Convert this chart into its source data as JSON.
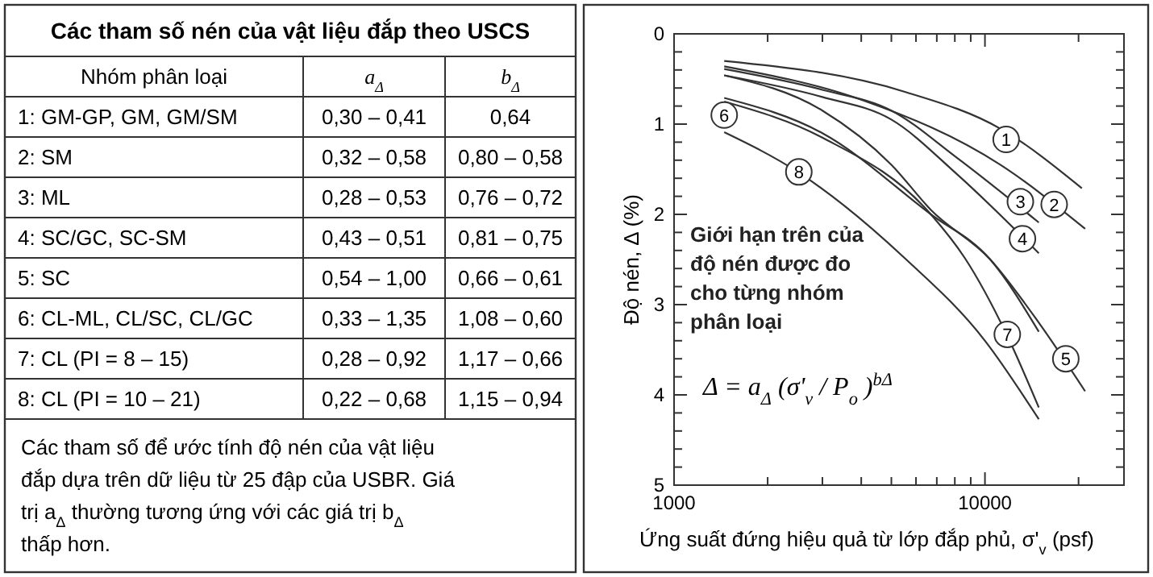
{
  "chart_data": [
    {
      "type": "other",
      "title": "Các tham số nén của vật liệu đắp theo USCS",
      "annotations": [
        "Nhóm phân loại",
        "a$_{Δ}$",
        "b$_{Δ}$",
        "1: GM-GP, GM, GM/SM",
        "0,30 – 0,41",
        "0,64",
        "2: SM",
        "0,32 – 0,58",
        "0,80 – 0,58",
        "3: ML",
        "0,28 – 0,53",
        "0,76 – 0,72",
        "4: SC/GC, SC-SM",
        "0,43 – 0,51",
        "0,81 – 0,75",
        "5: SC",
        "0,54 – 1,00",
        "0,66 – 0,61",
        "6: CL-ML, CL/SC, CL/GC",
        "0,33 – 1,35",
        "1,08 – 0,60",
        "7: CL (PI = 8 – 15)",
        "0,28 – 0,92",
        "1,17 – 0,66",
        "8: CL (PI = 10 – 21)",
        "0,22 – 0,68",
        "1,15 – 0,94",
        "Các tham số để ước tính độ nén của vật liệu đắp dựa trên dữ liệu từ 25 đập của USBR. Giá trị a$_{Δ}$ thường tương ứng với các giá trị b$_{Δ}$ thấp hơn."
      ]
    },
    {
      "type": "line",
      "log": "x",
      "xlabel": "Ứng suất đứng hiệu quả từ lớp đắp phủ, σ'$_{v}$ (psf)",
      "ylabel": "Độ nén, Δ (%)",
      "xlim": [
        1000,
        28000
      ],
      "ylim": [
        5,
        0
      ],
      "xticks": [
        1000,
        {
          "value": 2000,
          "label": null
        },
        {
          "value": 3000,
          "label": null
        },
        {
          "value": 4000,
          "label": null
        },
        {
          "value": 5000,
          "label": null
        },
        {
          "value": 6000,
          "label": null
        },
        {
          "value": 7000,
          "label": null
        },
        {
          "value": 8000,
          "label": null
        },
        {
          "value": 9000,
          "label": null
        },
        10000,
        {
          "value": 20000,
          "label": null
        }
      ],
      "yticks": [
        0,
        {
          "value": 0.2,
          "label": null
        },
        {
          "value": 0.4,
          "label": null
        },
        {
          "value": 0.6,
          "label": null
        },
        {
          "value": 0.8,
          "label": null
        },
        1,
        {
          "value": 1.2,
          "label": null
        },
        {
          "value": 1.4,
          "label": null
        },
        {
          "value": 1.6,
          "label": null
        },
        {
          "value": 1.8,
          "label": null
        },
        2,
        {
          "value": 2.2,
          "label": null
        },
        {
          "value": 2.4,
          "label": null
        },
        {
          "value": 2.6,
          "label": null
        },
        {
          "value": 2.8,
          "label": null
        },
        3,
        {
          "value": 3.2,
          "label": null
        },
        {
          "value": 3.4,
          "label": null
        },
        {
          "value": 3.6,
          "label": null
        },
        {
          "value": 3.8,
          "label": null
        },
        4,
        {
          "value": 4.2,
          "label": null
        },
        {
          "value": 4.4,
          "label": null
        },
        {
          "value": 4.6,
          "label": null
        },
        {
          "value": 4.8,
          "label": null
        },
        5
      ],
      "grid": false,
      "series": [
        {
          "color": "#333333",
          "x": [
            1450,
            5500,
            11200,
            20500
          ],
          "values": [
            0.3,
            0.64,
            1.05,
            1.71
          ]
        },
        {
          "color": "#333333",
          "x": [
            1450,
            4000,
            11200,
            21000
          ],
          "values": [
            0.36,
            0.73,
            1.45,
            2.16
          ]
        },
        {
          "color": "#333333",
          "x": [
            1450,
            3000,
            5000,
            8100,
            14900
          ],
          "values": [
            0.39,
            0.62,
            0.85,
            1.37,
            2.09
          ]
        },
        {
          "color": "#333333",
          "x": [
            1450,
            3000,
            5000,
            8100,
            14900
          ],
          "values": [
            0.46,
            0.7,
            0.95,
            1.55,
            2.43
          ]
        },
        {
          "color": "#333333",
          "x": [
            1450,
            3000,
            5000,
            6700,
            10400,
            14900,
            21000
          ],
          "values": [
            0.46,
            0.85,
            1.45,
            1.95,
            2.5,
            3.2,
            3.96
          ]
        },
        {
          "color": "#333333",
          "x": [
            1450,
            3000,
            6700,
            10400,
            14900
          ],
          "values": [
            0.71,
            1.1,
            2.0,
            2.5,
            3.3
          ]
        },
        {
          "color": "#333333",
          "x": [
            1450,
            3000,
            6700,
            8600,
            11700,
            14900
          ],
          "values": [
            0.75,
            1.15,
            2.0,
            2.48,
            3.32,
            4.14
          ]
        },
        {
          "color": "#333333",
          "x": [
            1450,
            2500,
            5500,
            10000,
            14900
          ],
          "values": [
            1.09,
            1.53,
            2.48,
            3.4,
            4.27
          ]
        }
      ],
      "annotations": [
        {
          "text": "1",
          "x": 11700,
          "y": 1.17
        },
        {
          "text": "2",
          "x": 16700,
          "y": 1.89
        },
        {
          "text": "3",
          "x": 13000,
          "y": 1.86
        },
        {
          "text": "4",
          "x": 13200,
          "y": 2.27
        },
        {
          "text": "5",
          "x": 18200,
          "y": 3.6
        },
        {
          "text": "6",
          "x": 1450,
          "y": 0.9
        },
        {
          "text": "7",
          "x": 11800,
          "y": 3.33
        },
        {
          "text": "8",
          "x": 2520,
          "y": 1.53
        },
        "Giới hạn trên của độ nén được đo cho từng nhóm phân loại",
        "Δ = a$_{Δ}$ (σ'$_{v}$ / P$_{o}$)$^{bΔ}$"
      ]
    }
  ]
}
